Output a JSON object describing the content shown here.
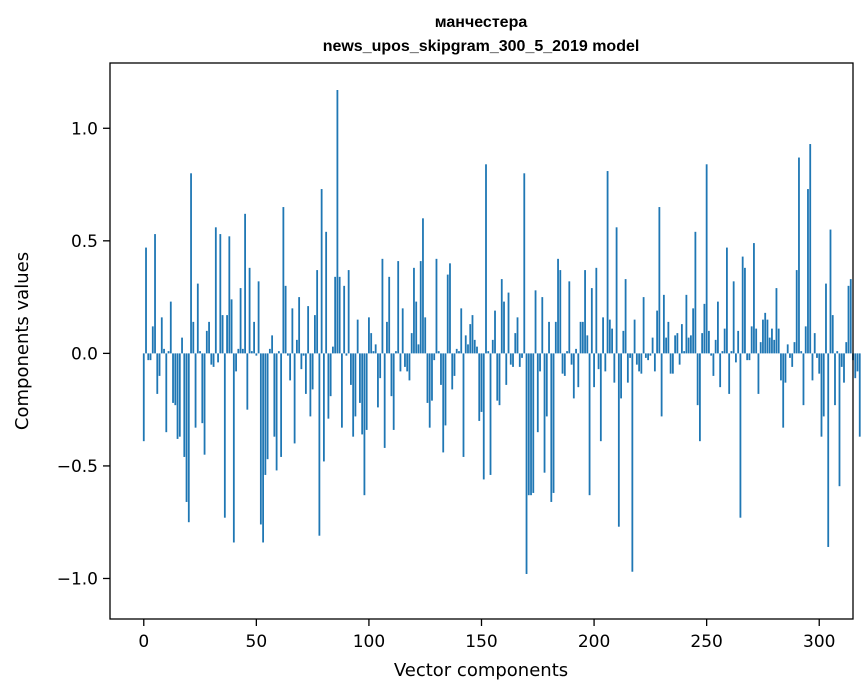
{
  "chart_data": {
    "type": "bar",
    "title": "манчестера",
    "subtitle": "news_upos_skipgram_300_5_2019 model",
    "xlabel": "Vector components",
    "ylabel": "Components values",
    "xlim": [
      -15,
      315
    ],
    "ylim": [
      -1.18,
      1.29
    ],
    "x_ticks": [
      0,
      50,
      100,
      150,
      200,
      250,
      300
    ],
    "x_tick_labels": [
      "0",
      "50",
      "100",
      "150",
      "200",
      "250",
      "300"
    ],
    "y_ticks": [
      -1.0,
      -0.5,
      0.0,
      0.5,
      1.0
    ],
    "y_tick_labels": [
      "−1.0",
      "−0.5",
      "0.0",
      "0.5",
      "1.0"
    ],
    "grid": false,
    "bar_color": "#1f77b4",
    "values": [
      -0.39,
      0.47,
      -0.03,
      -0.03,
      0.12,
      0.53,
      -0.18,
      -0.1,
      0.16,
      0.02,
      -0.35,
      0.01,
      0.23,
      -0.22,
      -0.23,
      -0.38,
      -0.37,
      0.07,
      -0.46,
      -0.66,
      -0.75,
      0.8,
      0.14,
      -0.33,
      0.31,
      0.01,
      -0.31,
      -0.45,
      0.1,
      0.14,
      -0.05,
      -0.06,
      0.56,
      -0.04,
      0.53,
      0.17,
      -0.73,
      0.17,
      0.52,
      0.24,
      -0.84,
      -0.08,
      0.02,
      0.29,
      0.02,
      0.62,
      -0.25,
      0.38,
      0.01,
      0.14,
      -0.01,
      0.32,
      -0.76,
      -0.84,
      -0.54,
      -0.47,
      0.02,
      0.08,
      -0.37,
      -0.52,
      0.01,
      -0.46,
      0.65,
      0.3,
      -0.01,
      -0.12,
      0.2,
      -0.4,
      0.06,
      0.25,
      -0.07,
      -0.01,
      -0.18,
      0.21,
      -0.28,
      -0.16,
      0.17,
      0.37,
      -0.81,
      0.73,
      -0.48,
      0.54,
      -0.29,
      -0.19,
      0.03,
      0.34,
      1.17,
      0.34,
      -0.33,
      0.3,
      -0.01,
      0.37,
      -0.14,
      -0.37,
      -0.28,
      0.15,
      -0.22,
      -0.36,
      -0.63,
      -0.34,
      0.16,
      0.09,
      0.01,
      0.04,
      -0.24,
      -0.11,
      0.42,
      -0.42,
      0.14,
      0.34,
      -0.19,
      -0.34,
      0.01,
      0.41,
      -0.08,
      0.2,
      -0.06,
      -0.08,
      -0.12,
      0.09,
      0.38,
      0.23,
      0.04,
      0.41,
      0.6,
      0.16,
      -0.22,
      -0.33,
      -0.21,
      -0.03,
      0.42,
      0.01,
      -0.14,
      -0.44,
      -0.32,
      0.35,
      0.4,
      -0.16,
      -0.1,
      0.02,
      0.01,
      0.2,
      -0.46,
      0.08,
      0.04,
      0.13,
      0.17,
      0.06,
      0.03,
      -0.3,
      -0.26,
      -0.56,
      0.84,
      0.01,
      -0.54,
      0.06,
      0.19,
      -0.21,
      -0.23,
      0.33,
      0.23,
      -0.14,
      0.27,
      -0.05,
      -0.06,
      0.09,
      0.16,
      -0.06,
      -0.02,
      0.8,
      -0.98,
      -0.63,
      -0.63,
      -0.62,
      0.28,
      -0.35,
      -0.08,
      0.25,
      -0.53,
      -0.28,
      0.14,
      -0.66,
      -0.62,
      0.14,
      0.42,
      0.37,
      -0.09,
      -0.1,
      0.01,
      0.32,
      -0.05,
      -0.2,
      0.02,
      -0.15,
      0.14,
      0.14,
      0.37,
      0.08,
      -0.63,
      0.29,
      -0.15,
      0.38,
      -0.07,
      -0.39,
      0.16,
      -0.08,
      0.81,
      0.15,
      0.11,
      -0.13,
      0.56,
      -0.77,
      -0.2,
      0.1,
      0.33,
      -0.13,
      -0.02,
      -0.97,
      0.15,
      -0.05,
      -0.08,
      -0.09,
      0.25,
      -0.02,
      -0.03,
      -0.01,
      0.07,
      -0.08,
      0.19,
      0.65,
      -0.28,
      0.26,
      0.07,
      0.14,
      -0.09,
      -0.09,
      0.08,
      0.09,
      -0.05,
      0.13,
      0.01,
      0.26,
      0.07,
      0.08,
      0.2,
      0.54,
      -0.23,
      -0.39,
      0.09,
      0.22,
      0.84,
      0.1,
      -0.01,
      -0.1,
      0.06,
      0.23,
      -0.15,
      0.01,
      0.11,
      0.47,
      -0.18,
      0.01,
      0.32,
      -0.04,
      0.1,
      -0.73,
      0.43,
      0.38,
      -0.03,
      -0.03,
      0.12,
      0.49,
      0.11,
      -0.18,
      0.05,
      0.15,
      0.18,
      0.15,
      0.07,
      0.11,
      0.06,
      0.29,
      0.11,
      -0.12,
      -0.33,
      -0.13,
      0.04,
      -0.02,
      -0.06,
      0.05,
      0.37,
      0.87,
      0.01,
      -0.23,
      0.12,
      0.73,
      0.93,
      -0.12,
      0.09,
      -0.02,
      -0.09,
      -0.37,
      -0.28,
      0.31,
      -0.86,
      0.55,
      0.17,
      -0.23,
      0.01,
      -0.59,
      -0.06,
      -0.13,
      0.05,
      0.3,
      0.33,
      -0.03,
      -0.11,
      -0.08,
      -0.37
    ]
  }
}
